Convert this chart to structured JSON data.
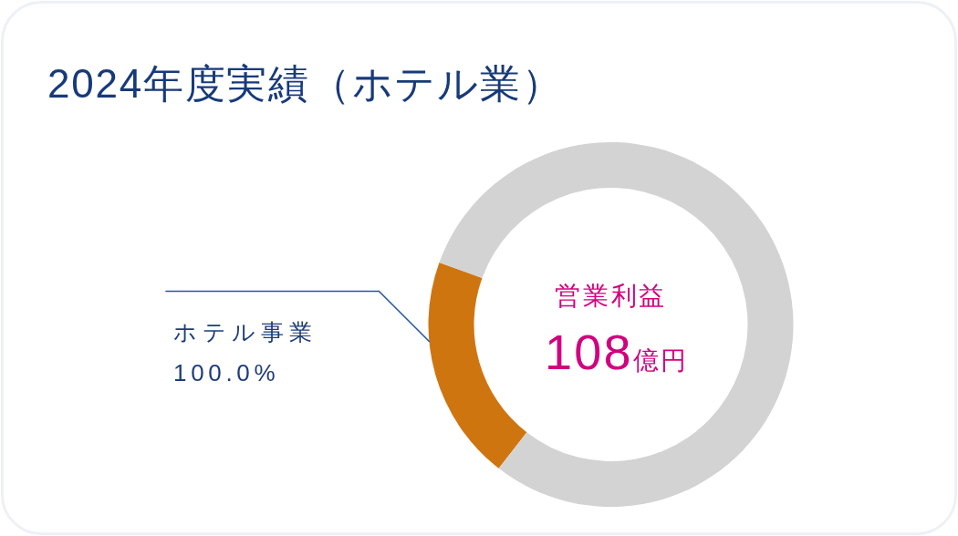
{
  "chart_data": {
    "type": "donut",
    "title": "2024年度実績（ホテル業）",
    "categories": [
      "ホテル事業",
      null
    ],
    "values": [
      20,
      80
    ],
    "colors": [
      "#cf7510",
      "#d3d3d3"
    ],
    "annotations": [
      {
        "text": "100.0%",
        "x": "ホテル事業"
      },
      "営業利益",
      "108億円"
    ]
  }
}
